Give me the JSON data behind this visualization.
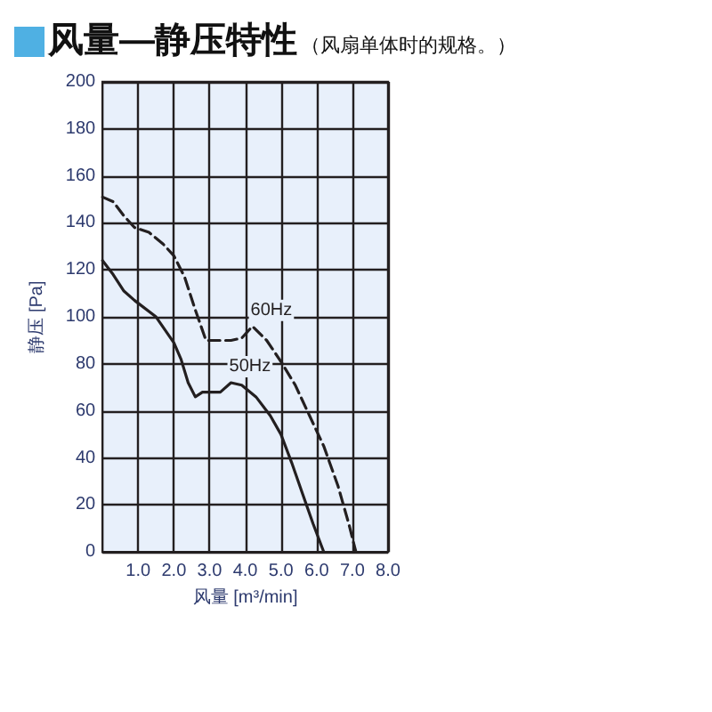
{
  "chart_data": {
    "type": "line",
    "title": "风量—静压特性",
    "subtitle": "（风扇单体时的规格。）",
    "xlabel": "风量 [m³/min]",
    "ylabel": "静压 [Pa]",
    "xlim": [
      0,
      8
    ],
    "xticks": [
      {
        "value": 1,
        "label": "1.0"
      },
      {
        "value": 2,
        "label": "2.0"
      },
      {
        "value": 3,
        "label": "3.0"
      },
      {
        "value": 4,
        "label": "4.0"
      },
      {
        "value": 5,
        "label": "5.0"
      },
      {
        "value": 6,
        "label": "6.0"
      },
      {
        "value": 7,
        "label": "7.0"
      },
      {
        "value": 8,
        "label": "8.0"
      }
    ],
    "ylim": [
      0,
      200
    ],
    "yticks": [
      0,
      20,
      40,
      60,
      80,
      100,
      120,
      140,
      160,
      180,
      200
    ],
    "grid": true,
    "legend": false,
    "marker": "none",
    "series": [
      {
        "name": "60Hz",
        "color": "#231f20",
        "line_style": "dashed",
        "x": [
          0,
          0.3,
          0.6,
          0.9,
          1.3,
          1.7,
          2.0,
          2.3,
          2.6,
          2.9,
          3.2,
          3.6,
          3.9,
          4.2,
          4.6,
          5.0,
          5.4,
          5.8,
          6.2,
          6.6,
          6.9,
          7.1
        ],
        "values": [
          151,
          149,
          143,
          138,
          136,
          131,
          126,
          117,
          103,
          90,
          90,
          90,
          91,
          96,
          90,
          81,
          71,
          58,
          45,
          28,
          12,
          0
        ]
      },
      {
        "name": "50Hz",
        "color": "#231f20",
        "line_style": "solid",
        "x": [
          0,
          0.3,
          0.6,
          0.9,
          1.5,
          2.0,
          2.2,
          2.4,
          2.6,
          2.8,
          3.0,
          3.3,
          3.6,
          3.9,
          4.3,
          4.7,
          5.0,
          5.3,
          5.6,
          5.9,
          6.2
        ],
        "values": [
          124,
          118,
          111,
          107,
          100,
          89,
          82,
          72,
          66,
          68,
          68,
          68,
          72,
          71,
          66,
          58,
          50,
          38,
          25,
          12,
          0
        ]
      }
    ]
  }
}
